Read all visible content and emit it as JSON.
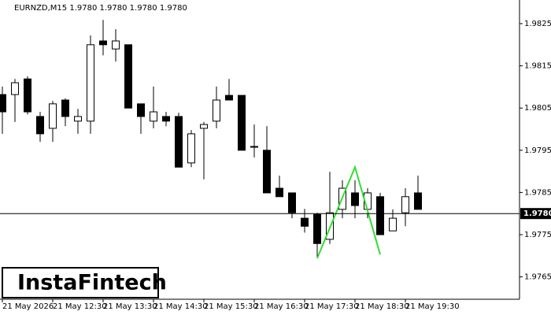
{
  "chart_data": {
    "type": "candlestick",
    "title": "EURNZD,M15  1.9780 1.9780 1.9780 1.9780",
    "logo": "InstaFintech",
    "categories": [
      "21 May 2026",
      null,
      null,
      null,
      "21 May 12:30",
      null,
      null,
      null,
      "21 May 13:30",
      null,
      null,
      null,
      "21 May 14:30",
      null,
      null,
      null,
      "21 May 15:30",
      null,
      null,
      null,
      "21 May 16:30",
      null,
      null,
      null,
      "21 May 17:30",
      null,
      null,
      null,
      "21 May 18:30",
      null,
      null,
      null,
      "21 May 19:30",
      null
    ],
    "open": [
      1.98082,
      1.98082,
      1.98119,
      1.9803,
      1.98002,
      1.98069,
      1.98019,
      1.98019,
      1.98209,
      1.9819,
      1.982,
      1.9806,
      1.98019,
      1.9803,
      1.9803,
      1.9792,
      1.98002,
      1.98019,
      1.9808,
      1.9808,
      1.97959,
      1.9795,
      1.9786,
      1.97849,
      1.97789,
      1.97798,
      1.97739,
      1.9781,
      1.97849,
      1.9781,
      1.9784,
      1.97759,
      1.97802,
      1.97849
    ],
    "high": [
      1.98101,
      1.98119,
      1.98125,
      1.98041,
      1.98067,
      1.98073,
      1.98048,
      1.98222,
      1.98259,
      1.98237,
      1.982,
      1.9806,
      1.98101,
      1.98041,
      1.98039,
      1.97998,
      1.98017,
      1.98101,
      1.98119,
      1.9808,
      1.98011,
      1.98007,
      1.9789,
      1.97849,
      1.97811,
      1.97802,
      1.97899,
      1.97879,
      1.97879,
      1.9786,
      1.97849,
      1.9781,
      1.9786,
      1.9789
    ],
    "low": [
      1.97989,
      1.98017,
      1.98035,
      1.9797,
      1.9797,
      1.98007,
      1.97989,
      1.97989,
      1.98175,
      1.9816,
      1.9805,
      1.97989,
      1.98002,
      1.98007,
      1.9791,
      1.9791,
      1.97881,
      1.98002,
      1.98069,
      1.9795,
      1.97933,
      1.97849,
      1.9784,
      1.97789,
      1.97755,
      1.97694,
      1.97728,
      1.97789,
      1.97789,
      1.97789,
      1.9775,
      1.97759,
      1.9777,
      1.9781
    ],
    "close": [
      1.98041,
      1.9811,
      1.98041,
      1.97989,
      1.9806,
      1.9803,
      1.9803,
      1.982,
      1.982,
      1.98209,
      1.9805,
      1.9803,
      1.98041,
      1.98019,
      1.9791,
      1.97989,
      1.98011,
      1.98069,
      1.98069,
      1.9795,
      1.97959,
      1.97849,
      1.9784,
      1.97802,
      1.9777,
      1.97729,
      1.97802,
      1.9786,
      1.97819,
      1.97849,
      1.9775,
      1.97789,
      1.9784,
      1.9781
    ],
    "up_color": "#ffffff",
    "down_color": "#000000",
    "pattern_line": {
      "color": "#33dd33",
      "x": [
        25,
        28,
        30
      ],
      "values": [
        1.97694,
        1.9791,
        1.97703
      ]
    },
    "current_price": {
      "value": 1.978,
      "label": "1.9780"
    },
    "ylim": [
      1.97597,
      1.98306
    ],
    "yticks": [
      1.9825,
      1.9815,
      1.9805,
      1.9795,
      1.9785,
      1.9775,
      1.9765
    ]
  }
}
